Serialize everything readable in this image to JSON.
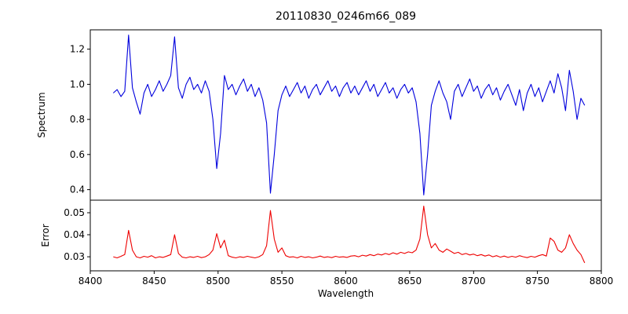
{
  "chart_data": {
    "type": "line",
    "title": "20110830_0246m66_089",
    "xlabel": "Wavelength",
    "xlim": [
      8400,
      8800
    ],
    "xticks": [
      8400,
      8450,
      8500,
      8550,
      8600,
      8650,
      8700,
      8750,
      8800
    ],
    "xtick_labels": [
      "8400",
      "8450",
      "8500",
      "8550",
      "8600",
      "8650",
      "8700",
      "8750",
      "8800"
    ],
    "grid": false,
    "legend": "none",
    "x": [
      8418,
      8421,
      8424,
      8427,
      8430,
      8433,
      8436,
      8439,
      8442,
      8445,
      8448,
      8451,
      8454,
      8457,
      8460,
      8463,
      8466,
      8469,
      8472,
      8475,
      8478,
      8481,
      8484,
      8487,
      8490,
      8493,
      8496,
      8499,
      8502,
      8505,
      8508,
      8511,
      8514,
      8517,
      8520,
      8523,
      8526,
      8529,
      8532,
      8535,
      8538,
      8541,
      8544,
      8547,
      8550,
      8553,
      8556,
      8559,
      8562,
      8565,
      8568,
      8571,
      8574,
      8577,
      8580,
      8583,
      8586,
      8589,
      8592,
      8595,
      8598,
      8601,
      8604,
      8607,
      8610,
      8613,
      8616,
      8619,
      8622,
      8625,
      8628,
      8631,
      8634,
      8637,
      8640,
      8643,
      8646,
      8649,
      8652,
      8655,
      8658,
      8661,
      8664,
      8667,
      8670,
      8673,
      8676,
      8679,
      8682,
      8685,
      8688,
      8691,
      8694,
      8697,
      8700,
      8703,
      8706,
      8709,
      8712,
      8715,
      8718,
      8721,
      8724,
      8727,
      8730,
      8733,
      8736,
      8739,
      8742,
      8745,
      8748,
      8751,
      8754,
      8757,
      8760,
      8763,
      8766,
      8769,
      8772,
      8775,
      8778,
      8781,
      8784,
      8787
    ],
    "panels": [
      {
        "name": "spectrum",
        "ylabel": "Spectrum",
        "color": "#0000dd",
        "ylim": [
          0.34,
          1.31
        ],
        "yticks": [
          0.4,
          0.6,
          0.8,
          1.0,
          1.2
        ],
        "ytick_labels": [
          "0.4",
          "0.6",
          "0.8",
          "1.0",
          "1.2"
        ],
        "values": [
          0.95,
          0.97,
          0.93,
          0.96,
          1.28,
          0.98,
          0.9,
          0.83,
          0.95,
          1.0,
          0.93,
          0.97,
          1.02,
          0.96,
          1.0,
          1.05,
          1.27,
          0.98,
          0.92,
          1.0,
          1.04,
          0.97,
          1.0,
          0.95,
          1.02,
          0.96,
          0.8,
          0.52,
          0.72,
          1.05,
          0.97,
          1.0,
          0.94,
          0.99,
          1.03,
          0.96,
          1.0,
          0.93,
          0.98,
          0.91,
          0.78,
          0.38,
          0.6,
          0.85,
          0.94,
          0.99,
          0.93,
          0.97,
          1.01,
          0.95,
          0.99,
          0.92,
          0.97,
          1.0,
          0.94,
          0.98,
          1.02,
          0.96,
          0.99,
          0.93,
          0.98,
          1.01,
          0.95,
          0.99,
          0.94,
          0.98,
          1.02,
          0.96,
          1.0,
          0.93,
          0.97,
          1.01,
          0.95,
          0.98,
          0.92,
          0.97,
          1.0,
          0.95,
          0.98,
          0.9,
          0.72,
          0.37,
          0.6,
          0.88,
          0.96,
          1.02,
          0.95,
          0.9,
          0.8,
          0.96,
          1.0,
          0.93,
          0.98,
          1.03,
          0.96,
          0.99,
          0.92,
          0.97,
          1.0,
          0.94,
          0.98,
          0.91,
          0.96,
          1.0,
          0.94,
          0.88,
          0.97,
          0.85,
          0.95,
          1.0,
          0.93,
          0.98,
          0.9,
          0.96,
          1.02,
          0.95,
          1.06,
          0.98,
          0.85,
          1.08,
          0.96,
          0.8,
          0.92,
          0.88
        ]
      },
      {
        "name": "error",
        "ylabel": "Error",
        "color": "#ee0000",
        "ylim": [
          0.0236,
          0.0557
        ],
        "yticks": [
          0.03,
          0.04,
          0.05
        ],
        "ytick_labels": [
          "0.03",
          "0.04",
          "0.05"
        ],
        "values": [
          0.03,
          0.0295,
          0.0302,
          0.031,
          0.042,
          0.033,
          0.03,
          0.0295,
          0.0302,
          0.0298,
          0.0305,
          0.0295,
          0.03,
          0.0297,
          0.0303,
          0.031,
          0.04,
          0.0315,
          0.0298,
          0.0295,
          0.03,
          0.0297,
          0.0302,
          0.0296,
          0.03,
          0.031,
          0.033,
          0.0405,
          0.034,
          0.0375,
          0.0305,
          0.0298,
          0.0295,
          0.03,
          0.0297,
          0.0302,
          0.0298,
          0.0295,
          0.03,
          0.031,
          0.035,
          0.051,
          0.038,
          0.032,
          0.034,
          0.0305,
          0.0298,
          0.03,
          0.0295,
          0.0302,
          0.0297,
          0.03,
          0.0295,
          0.0298,
          0.0303,
          0.0297,
          0.03,
          0.0296,
          0.0302,
          0.0298,
          0.03,
          0.0297,
          0.0303,
          0.0305,
          0.03,
          0.0307,
          0.0303,
          0.031,
          0.0305,
          0.0312,
          0.0308,
          0.0315,
          0.031,
          0.0318,
          0.0312,
          0.032,
          0.0315,
          0.0322,
          0.0318,
          0.033,
          0.038,
          0.053,
          0.04,
          0.034,
          0.036,
          0.033,
          0.032,
          0.0335,
          0.0325,
          0.0315,
          0.032,
          0.031,
          0.0315,
          0.0308,
          0.0312,
          0.0305,
          0.031,
          0.0303,
          0.0308,
          0.03,
          0.0305,
          0.0298,
          0.0303,
          0.0297,
          0.0302,
          0.0298,
          0.0305,
          0.03,
          0.0296,
          0.0302,
          0.0298,
          0.0305,
          0.031,
          0.0303,
          0.0385,
          0.037,
          0.033,
          0.032,
          0.034,
          0.04,
          0.036,
          0.033,
          0.031,
          0.0272
        ]
      }
    ]
  }
}
